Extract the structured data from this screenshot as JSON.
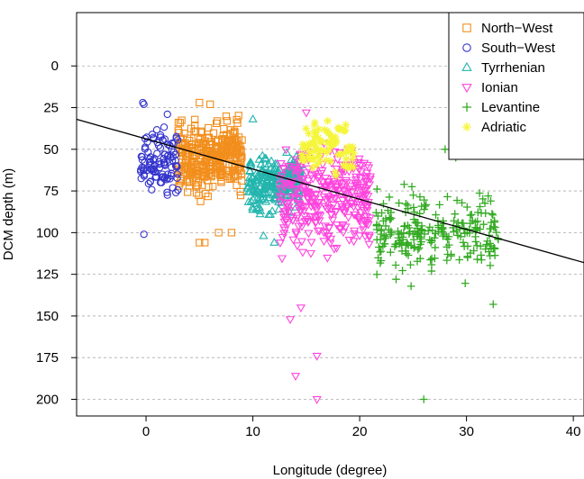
{
  "chart_data": {
    "type": "scatter",
    "title": "",
    "xlabel": "Longitude (degree)",
    "ylabel": "DCM depth (m)",
    "xlim": [
      -6.5,
      41
    ],
    "ylim": [
      210,
      -32
    ],
    "y_reversed": true,
    "xticks": [
      0,
      10,
      20,
      30,
      40
    ],
    "yticks": [
      0,
      25,
      50,
      75,
      100,
      125,
      150,
      175,
      200
    ],
    "grid": "horizontal dashed",
    "legend_position": "top-right",
    "regression_line": {
      "x": [
        -6.5,
        41
      ],
      "y": [
        32,
        118
      ]
    },
    "series": [
      {
        "name": "North−West",
        "color": "#f28e1c",
        "marker": "square",
        "x_range": [
          3,
          9
        ],
        "y_center": 55,
        "y_spread": 18,
        "n": 320,
        "extra_points": [
          [
            5,
            106
          ],
          [
            5.5,
            106
          ],
          [
            6.8,
            100
          ],
          [
            8,
            100
          ],
          [
            5,
            22
          ],
          [
            6,
            23
          ]
        ]
      },
      {
        "name": "South−West",
        "color": "#3333cc",
        "marker": "circle",
        "x_range": [
          -0.5,
          3
        ],
        "y_center": 58,
        "y_spread": 18,
        "n": 110,
        "extra_points": [
          [
            -0.3,
            22
          ],
          [
            -0.2,
            23
          ],
          [
            -0.2,
            101
          ],
          [
            2,
            29
          ]
        ]
      },
      {
        "name": "Tyrrhenian",
        "color": "#22b5ad",
        "marker": "triangle-up",
        "x_range": [
          9.5,
          14.5
        ],
        "y_center": 70,
        "y_spread": 14,
        "n": 260,
        "extra_points": [
          [
            10,
            32
          ],
          [
            12,
            106
          ],
          [
            11,
            102
          ]
        ]
      },
      {
        "name": "Ionian",
        "color": "#ff44dd",
        "marker": "triangle-down",
        "x_range": [
          12.5,
          21
        ],
        "y_center": 80,
        "y_spread": 26,
        "n": 340,
        "extra_points": [
          [
            13.5,
            152
          ],
          [
            14.5,
            145
          ],
          [
            14,
            186
          ],
          [
            16,
            174
          ],
          [
            16,
            200
          ],
          [
            15,
            28
          ]
        ]
      },
      {
        "name": "Levantine",
        "color": "#33aa22",
        "marker": "plus",
        "x_range": [
          21.5,
          33
        ],
        "y_center": 100,
        "y_spread": 20,
        "n": 240,
        "extra_points": [
          [
            26,
            200
          ],
          [
            28,
            50
          ],
          [
            29,
            55
          ],
          [
            32.5,
            143
          ]
        ]
      },
      {
        "name": "Adriatic",
        "color": "#f5f53a",
        "marker": "star",
        "x_range": [
          14.5,
          19.5
        ],
        "y_center": 50,
        "y_spread": 12,
        "n": 90,
        "extra_points": [
          [
            17,
            33
          ],
          [
            18,
            37
          ]
        ]
      }
    ]
  }
}
